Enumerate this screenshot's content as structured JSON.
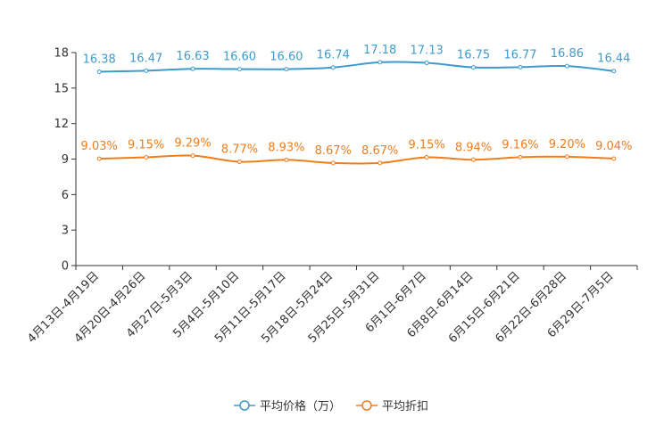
{
  "chart_data": {
    "type": "line",
    "title": "",
    "xlabel": "",
    "ylabel": "",
    "ylim": [
      0,
      18
    ],
    "yticks": [
      0,
      3,
      6,
      9,
      12,
      15,
      18
    ],
    "grid": false,
    "legend_position": "bottom-center",
    "categories": [
      "4月13日-4月19日",
      "4月20日-4月26日",
      "4月27日-5月3日",
      "5月4日-5月10日",
      "5月11日-5月17日",
      "5月18日-5月24日",
      "5月25日-5月31日",
      "6月1日-6月7日",
      "6月8日-6月14日",
      "6月15日-6月21日",
      "6月22日-6月28日",
      "6月29日-7月5日"
    ],
    "series": [
      {
        "name": "平均价格（万）",
        "color": "#3d9bce",
        "values": [
          16.38,
          16.47,
          16.63,
          16.6,
          16.6,
          16.74,
          17.18,
          17.13,
          16.75,
          16.77,
          16.86,
          16.44
        ],
        "labels": [
          "16.38",
          "16.47",
          "16.63",
          "16.60",
          "16.60",
          "16.74",
          "17.18",
          "17.13",
          "16.75",
          "16.77",
          "16.86",
          "16.44"
        ]
      },
      {
        "name": "平均折扣",
        "color": "#f07d1c",
        "values": [
          9.03,
          9.15,
          9.29,
          8.77,
          8.93,
          8.67,
          8.67,
          9.15,
          8.94,
          9.16,
          9.2,
          9.04
        ],
        "labels": [
          "9.03%",
          "9.15%",
          "9.29%",
          "8.77%",
          "8.93%",
          "8.67%",
          "8.67%",
          "9.15%",
          "8.94%",
          "9.16%",
          "9.20%",
          "9.04%"
        ]
      }
    ]
  }
}
